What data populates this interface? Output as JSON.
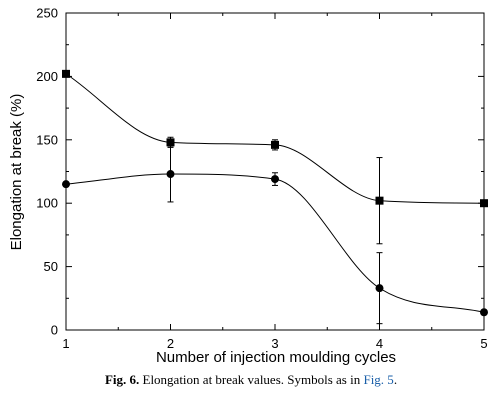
{
  "chart_data": {
    "type": "line",
    "xlabel": "Number of injection moulding cycles",
    "ylabel": "Elongation at break (%)",
    "xlim": [
      1,
      5
    ],
    "ylim": [
      0,
      250
    ],
    "xticks": [
      1,
      2,
      3,
      4,
      5
    ],
    "yticks": [
      0,
      50,
      100,
      150,
      200,
      250
    ],
    "grid": false,
    "legend": "none",
    "series": [
      {
        "marker": "square",
        "color": "#000000",
        "x": [
          1,
          2,
          3,
          4,
          5
        ],
        "y": [
          202,
          148,
          146,
          102,
          100
        ],
        "err_lower": [
          0,
          4,
          4,
          34,
          0
        ],
        "err_upper": [
          0,
          4,
          4,
          34,
          0
        ]
      },
      {
        "marker": "circle",
        "color": "#000000",
        "x": [
          1,
          2,
          3,
          4,
          5
        ],
        "y": [
          115,
          123,
          119,
          33,
          14
        ],
        "err_lower": [
          0,
          22,
          5,
          28,
          0
        ],
        "err_upper": [
          0,
          22,
          5,
          28,
          0
        ]
      }
    ]
  },
  "caption": {
    "label": "Fig. 6.",
    "text": " Elongation at break values. Symbols as in ",
    "ref": "Fig. 5",
    "end": "."
  }
}
